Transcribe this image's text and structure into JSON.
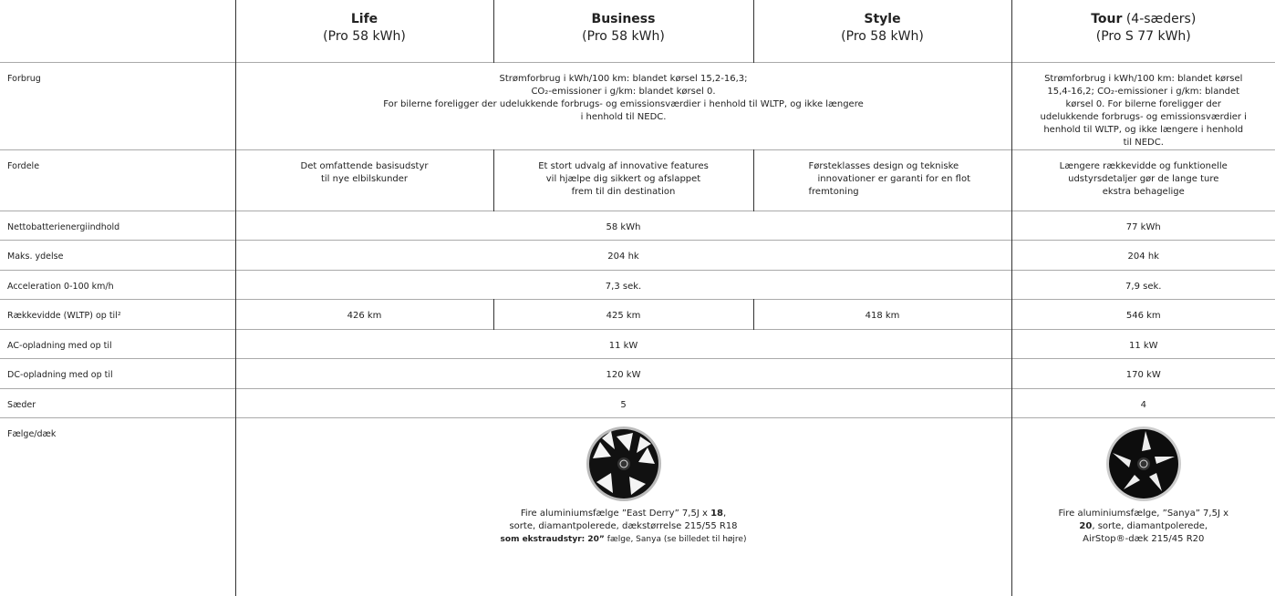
{
  "header": {
    "columns": [
      {
        "name": "Life",
        "sub": "(Pro 58 kWh)"
      },
      {
        "name": "Business",
        "sub": "(Pro 58 kWh)"
      },
      {
        "name": "Style",
        "sub": "(Pro 58 kWh)"
      },
      {
        "name": "Tour",
        "note": "(4-sæders)",
        "sub": "(Pro S 77 kWh)"
      }
    ]
  },
  "rows": [
    {
      "label": "Forbrug",
      "cells": [
        [
          "Strømforbrug i kWh/100 km: blandet kørsel 15,2-16,3;",
          "CO₂-emissioner i g/km: blandet kørsel 0.",
          "For bilerne foreligger der udelukkende forbrugs- og emissionsværdier i henhold til WLTP, og ikke længere",
          "i henhold til NEDC."
        ],
        [
          "Strømforbrug i kWh/100 km: blandet kørsel",
          "15,4-16,2; CO₂-emissioner i g/km: blandet",
          "kørsel 0. For bilerne foreligger der",
          "udelukkende forbrugs- og emissionsværdier i",
          "henhold til WLTP, og ikke længere i henhold",
          "til NEDC."
        ]
      ]
    },
    {
      "label": "Fordele",
      "cells": [
        [
          "Det omfattende basisudstyr",
          "til nye elbilskunder"
        ],
        [
          "Et stort udvalg af innovative features",
          "vil hjælpe dig sikkert og afslappet",
          "frem til din destination"
        ],
        [
          "Førsteklasses design og tekniske",
          "innovationer er garanti for en flot",
          "fremtoning"
        ],
        [
          "Længere rækkevidde og funktionelle",
          "udstyrsdetaljer gør de lange ture",
          "ekstra behagelige"
        ]
      ]
    },
    {
      "label": "Nettobatterienergiindhold",
      "cells": [
        "58 kWh",
        "77 kWh"
      ]
    },
    {
      "label": "Maks. ydelse",
      "cells": [
        "204 hk",
        "204 hk"
      ]
    },
    {
      "label": "Acceleration 0-100 km/h",
      "cells": [
        "7,3 sek.",
        "7,9 sek."
      ]
    },
    {
      "label": "Rækkevidde (WLTP) op til²",
      "cells": [
        "426 km",
        "425 km",
        "418 km",
        "546 km"
      ]
    },
    {
      "label": "AC-opladning med op til",
      "cells": [
        "11 kW",
        "11 kW"
      ]
    },
    {
      "label": "DC-opladning med op til",
      "cells": [
        "120 kW",
        "170 kW"
      ]
    },
    {
      "label": "Sæder",
      "cells": [
        "5",
        "4"
      ]
    },
    {
      "label": "Fælge/dæk",
      "cells": [
        [
          [
            "Fire aluminiumsfælge ”East Derry” 7,5J x ",
            "18",
            ","
          ],
          "sorte, diamantpolerede, dækstørrelse 215/55 R18",
          [
            "som ekstraudstyr: 20”",
            " fælge, Sanya (se billedet til højre)"
          ]
        ],
        [
          "Fire aluminiumsfælge, ”Sanya” 7,5J x",
          [
            "20",
            ", sorte, diamantpolerede,"
          ],
          "AirStop®-dæk 215/45 R20"
        ]
      ]
    }
  ]
}
